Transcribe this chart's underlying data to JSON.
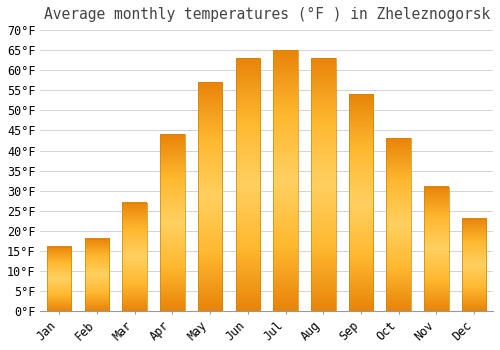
{
  "title": "Average monthly temperatures (°F ) in Zheleznogorsk",
  "months": [
    "Jan",
    "Feb",
    "Mar",
    "Apr",
    "May",
    "Jun",
    "Jul",
    "Aug",
    "Sep",
    "Oct",
    "Nov",
    "Dec"
  ],
  "values": [
    16,
    18,
    27,
    44,
    57,
    63,
    65,
    63,
    54,
    43,
    31,
    23
  ],
  "bar_color": "#FFA500",
  "bar_edge_color": "#CC8800",
  "ylim": [
    0,
    70
  ],
  "yticks": [
    0,
    5,
    10,
    15,
    20,
    25,
    30,
    35,
    40,
    45,
    50,
    55,
    60,
    65,
    70
  ],
  "background_color": "#ffffff",
  "grid_color": "#cccccc",
  "title_fontsize": 10.5,
  "tick_fontsize": 8.5,
  "font_family": "monospace"
}
